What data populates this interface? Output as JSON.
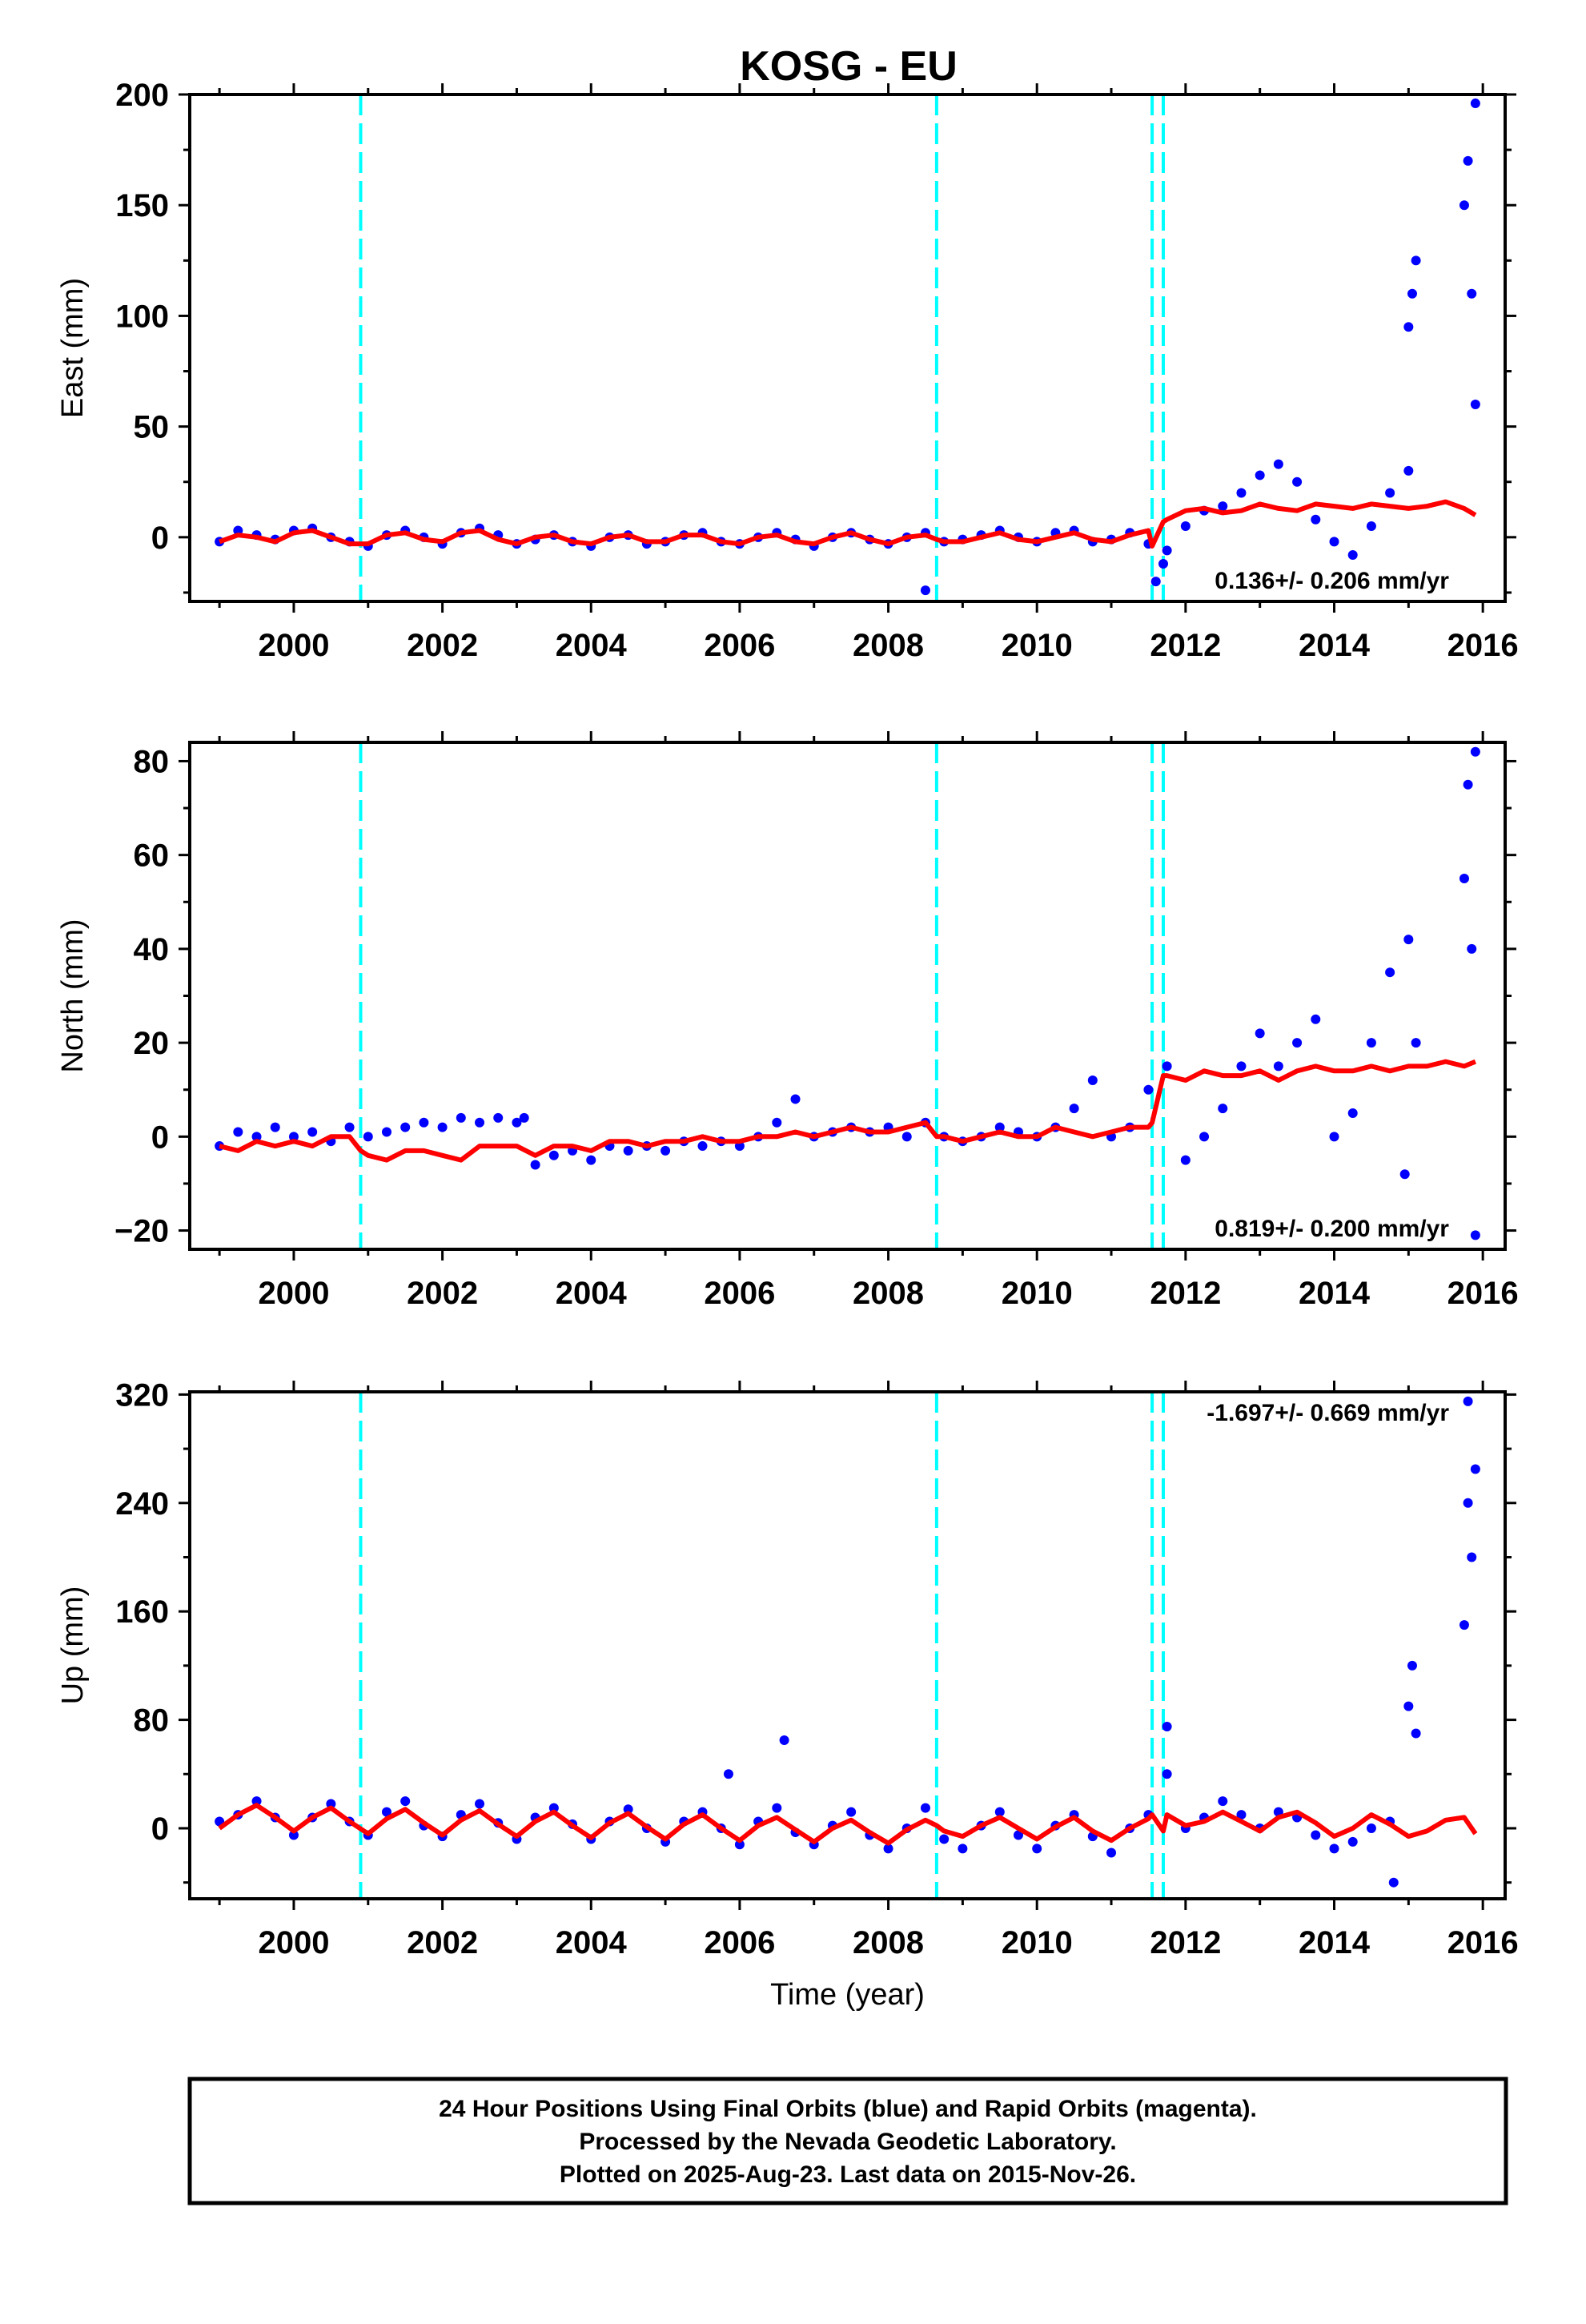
{
  "title": "KOSG - EU",
  "colors": {
    "final_orbits": "#0000ff",
    "model": "#ff0000",
    "steps": "#00ffff",
    "frame": "#000000"
  },
  "caption": [
    "24 Hour Positions Using Final Orbits (blue) and Rapid Orbits (magenta).",
    "Processed by the Nevada Geodetic Laboratory.",
    "Plotted on 2025-Aug-23. Last data on 2015-Nov-26."
  ],
  "chart_data": [
    {
      "type": "scatter",
      "ylabel": "East (mm)",
      "xlabel": "",
      "xlim": [
        1998.6,
        2016.3
      ],
      "ylim": [
        -29,
        200
      ],
      "yticks": [
        0,
        50,
        100,
        150,
        200
      ],
      "xticks": [
        2000,
        2002,
        2004,
        2006,
        2008,
        2010,
        2012,
        2014,
        2016
      ],
      "rate": "0.136+/- 0.206 mm/yr",
      "rate_position": "bottom-right",
      "grid": false,
      "step_epochs": [
        2000.9,
        2008.65,
        2011.55,
        2011.7
      ],
      "series": [
        {
          "role": "daily positions",
          "x": [
            1999.0,
            1999.25,
            1999.5,
            1999.75,
            2000.0,
            2000.25,
            2000.5,
            2000.75,
            2001.0,
            2001.25,
            2001.5,
            2001.75,
            2002.0,
            2002.25,
            2002.5,
            2002.75,
            2003.0,
            2003.25,
            2003.5,
            2003.75,
            2004.0,
            2004.25,
            2004.5,
            2004.75,
            2005.0,
            2005.25,
            2005.5,
            2005.75,
            2006.0,
            2006.25,
            2006.5,
            2006.75,
            2007.0,
            2007.25,
            2007.5,
            2007.75,
            2008.0,
            2008.25,
            2008.5,
            2008.75,
            2009.0,
            2009.25,
            2009.5,
            2009.75,
            2010.0,
            2010.25,
            2010.5,
            2010.75,
            2011.0,
            2011.25,
            2011.5,
            2011.75,
            2012.0,
            2012.25,
            2012.5,
            2012.75,
            2013.0,
            2013.25,
            2013.5,
            2013.75,
            2014.0,
            2014.25,
            2014.5,
            2014.75,
            2015.0,
            2015.05,
            2015.1,
            2015.75,
            2015.8,
            2015.85,
            2015.9,
            2008.5,
            2011.6,
            2011.7,
            2015.9,
            2015.0
          ],
          "y": [
            -2,
            3,
            1,
            -1,
            3,
            4,
            0,
            -2,
            -4,
            1,
            3,
            0,
            -3,
            2,
            4,
            1,
            -3,
            -1,
            1,
            -2,
            -4,
            0,
            1,
            -3,
            -2,
            1,
            2,
            -2,
            -3,
            0,
            2,
            -1,
            -4,
            0,
            2,
            -1,
            -3,
            0,
            2,
            -2,
            -1,
            1,
            3,
            0,
            -2,
            2,
            3,
            -2,
            -1,
            2,
            -3,
            -6,
            5,
            12,
            14,
            20,
            28,
            33,
            25,
            8,
            -2,
            -8,
            5,
            20,
            95,
            110,
            125,
            150,
            170,
            110,
            60,
            -24,
            -20,
            -12,
            196,
            30
          ]
        },
        {
          "role": "model fit",
          "x": [
            1999.0,
            1999.25,
            1999.5,
            1999.75,
            2000.0,
            2000.25,
            2000.5,
            2000.75,
            2000.9,
            2001.0,
            2001.25,
            2001.5,
            2001.75,
            2002.0,
            2002.25,
            2002.5,
            2002.75,
            2003.0,
            2003.25,
            2003.5,
            2003.75,
            2004.0,
            2004.25,
            2004.5,
            2004.75,
            2005.0,
            2005.25,
            2005.5,
            2005.75,
            2006.0,
            2006.25,
            2006.5,
            2006.75,
            2007.0,
            2007.25,
            2007.5,
            2007.75,
            2008.0,
            2008.25,
            2008.5,
            2008.65,
            2008.75,
            2009.0,
            2009.25,
            2009.5,
            2009.75,
            2010.0,
            2010.25,
            2010.5,
            2010.75,
            2011.0,
            2011.25,
            2011.5,
            2011.55,
            2011.7,
            2011.75,
            2012.0,
            2012.25,
            2012.5,
            2012.75,
            2013.0,
            2013.25,
            2013.5,
            2013.75,
            2014.0,
            2014.25,
            2014.5,
            2014.75,
            2015.0,
            2015.25,
            2015.5,
            2015.75,
            2015.9
          ],
          "y": [
            -2,
            1,
            0,
            -2,
            2,
            3,
            0,
            -3,
            -3,
            -3,
            1,
            2,
            -1,
            -2,
            2,
            3,
            -1,
            -3,
            0,
            1,
            -2,
            -3,
            0,
            1,
            -2,
            -2,
            1,
            1,
            -2,
            -3,
            0,
            1,
            -2,
            -3,
            0,
            2,
            -1,
            -3,
            0,
            1,
            -1,
            -2,
            -2,
            0,
            2,
            -1,
            -2,
            0,
            2,
            -1,
            -2,
            1,
            3,
            -4,
            7,
            8,
            12,
            13,
            11,
            12,
            15,
            13,
            12,
            15,
            14,
            13,
            15,
            14,
            13,
            14,
            16,
            13,
            10
          ]
        }
      ]
    },
    {
      "type": "scatter",
      "ylabel": "North (mm)",
      "xlabel": "",
      "xlim": [
        1998.6,
        2016.3
      ],
      "ylim": [
        -24,
        84
      ],
      "yticks": [
        -20,
        0,
        20,
        40,
        60,
        80
      ],
      "xticks": [
        2000,
        2002,
        2004,
        2006,
        2008,
        2010,
        2012,
        2014,
        2016
      ],
      "rate": "0.819+/- 0.200 mm/yr",
      "rate_position": "bottom-right",
      "grid": false,
      "step_epochs": [
        2000.9,
        2008.65,
        2011.55,
        2011.7
      ],
      "series": [
        {
          "role": "daily positions",
          "x": [
            1999.0,
            1999.25,
            1999.5,
            1999.75,
            2000.0,
            2000.25,
            2000.5,
            2000.75,
            2001.0,
            2001.25,
            2001.5,
            2001.75,
            2002.0,
            2002.25,
            2002.5,
            2002.75,
            2003.0,
            2003.1,
            2003.25,
            2003.5,
            2003.75,
            2004.0,
            2004.25,
            2004.5,
            2004.75,
            2005.0,
            2005.25,
            2005.5,
            2005.75,
            2006.0,
            2006.25,
            2006.5,
            2006.75,
            2007.0,
            2007.25,
            2007.5,
            2007.75,
            2008.0,
            2008.25,
            2008.5,
            2008.75,
            2009.0,
            2009.25,
            2009.5,
            2009.75,
            2010.0,
            2010.25,
            2010.5,
            2010.75,
            2011.0,
            2011.25,
            2011.5,
            2011.75,
            2012.0,
            2012.25,
            2012.5,
            2012.75,
            2013.0,
            2013.25,
            2013.5,
            2013.75,
            2014.0,
            2014.25,
            2014.5,
            2014.75,
            2015.0,
            2015.1,
            2015.75,
            2015.8,
            2015.85,
            2015.9,
            2015.9,
            2014.95
          ],
          "y": [
            -2,
            1,
            0,
            2,
            0,
            1,
            -1,
            2,
            0,
            1,
            2,
            3,
            2,
            4,
            3,
            4,
            3,
            4,
            -6,
            -4,
            -3,
            -5,
            -2,
            -3,
            -2,
            -3,
            -1,
            -2,
            -1,
            -2,
            0,
            3,
            8,
            0,
            1,
            2,
            1,
            2,
            0,
            3,
            0,
            -1,
            0,
            2,
            1,
            0,
            2,
            6,
            12,
            0,
            2,
            10,
            15,
            -5,
            0,
            6,
            15,
            22,
            15,
            20,
            25,
            0,
            5,
            20,
            35,
            42,
            20,
            55,
            75,
            40,
            82,
            -21,
            -8
          ]
        },
        {
          "role": "model fit",
          "x": [
            1999.0,
            1999.25,
            1999.5,
            1999.75,
            2000.0,
            2000.25,
            2000.5,
            2000.75,
            2000.9,
            2001.0,
            2001.25,
            2001.5,
            2001.75,
            2002.0,
            2002.25,
            2002.5,
            2002.75,
            2003.0,
            2003.25,
            2003.5,
            2003.75,
            2004.0,
            2004.25,
            2004.5,
            2004.75,
            2005.0,
            2005.25,
            2005.5,
            2005.75,
            2006.0,
            2006.25,
            2006.5,
            2006.75,
            2007.0,
            2007.25,
            2007.5,
            2007.75,
            2008.0,
            2008.25,
            2008.5,
            2008.65,
            2008.75,
            2009.0,
            2009.25,
            2009.5,
            2009.75,
            2010.0,
            2010.25,
            2010.5,
            2010.75,
            2011.0,
            2011.25,
            2011.5,
            2011.55,
            2011.7,
            2011.75,
            2012.0,
            2012.25,
            2012.5,
            2012.75,
            2013.0,
            2013.25,
            2013.5,
            2013.75,
            2014.0,
            2014.25,
            2014.5,
            2014.75,
            2015.0,
            2015.25,
            2015.5,
            2015.75,
            2015.9
          ],
          "y": [
            -2,
            -3,
            -1,
            -2,
            -1,
            -2,
            0,
            0,
            -3,
            -4,
            -5,
            -3,
            -3,
            -4,
            -5,
            -2,
            -2,
            -2,
            -4,
            -2,
            -2,
            -3,
            -1,
            -1,
            -2,
            -1,
            -1,
            0,
            -1,
            -1,
            0,
            0,
            1,
            0,
            1,
            2,
            1,
            1,
            2,
            3,
            0,
            0,
            -1,
            0,
            1,
            0,
            0,
            2,
            1,
            0,
            1,
            2,
            2,
            3,
            13,
            13,
            12,
            14,
            13,
            13,
            14,
            12,
            14,
            15,
            14,
            14,
            15,
            14,
            15,
            15,
            16,
            15,
            16
          ]
        }
      ]
    },
    {
      "type": "scatter",
      "ylabel": "Up (mm)",
      "xlabel": "Time (year)",
      "xlim": [
        1998.6,
        2016.3
      ],
      "ylim": [
        -52,
        322
      ],
      "yticks": [
        0,
        80,
        160,
        240,
        320
      ],
      "xticks": [
        2000,
        2002,
        2004,
        2006,
        2008,
        2010,
        2012,
        2014,
        2016
      ],
      "rate": "-1.697+/- 0.669 mm/yr",
      "rate_position": "top-right",
      "grid": false,
      "step_epochs": [
        2000.9,
        2008.65,
        2011.55,
        2011.7
      ],
      "series": [
        {
          "role": "daily positions",
          "x": [
            1999.0,
            1999.25,
            1999.5,
            1999.75,
            2000.0,
            2000.25,
            2000.5,
            2000.75,
            2001.0,
            2001.25,
            2001.5,
            2001.75,
            2002.0,
            2002.25,
            2002.5,
            2002.75,
            2003.0,
            2003.25,
            2003.5,
            2003.75,
            2004.0,
            2004.25,
            2004.5,
            2004.75,
            2005.0,
            2005.25,
            2005.5,
            2005.75,
            2006.0,
            2006.25,
            2006.5,
            2006.75,
            2007.0,
            2007.25,
            2007.5,
            2007.75,
            2008.0,
            2008.25,
            2008.5,
            2008.75,
            2009.0,
            2009.25,
            2009.5,
            2009.75,
            2010.0,
            2010.25,
            2010.5,
            2010.75,
            2011.0,
            2011.25,
            2011.5,
            2011.75,
            2012.0,
            2012.25,
            2012.5,
            2012.75,
            2013.0,
            2013.25,
            2013.5,
            2013.75,
            2014.0,
            2014.25,
            2014.5,
            2014.75,
            2015.0,
            2015.05,
            2015.1,
            2015.75,
            2015.8,
            2015.85,
            2015.9,
            2005.85,
            2006.6,
            2011.75,
            2015.8,
            2014.8
          ],
          "y": [
            5,
            10,
            20,
            8,
            -5,
            8,
            18,
            5,
            -5,
            12,
            20,
            2,
            -6,
            10,
            18,
            4,
            -8,
            8,
            15,
            3,
            -8,
            5,
            14,
            0,
            -10,
            5,
            12,
            0,
            -12,
            5,
            15,
            -3,
            -12,
            2,
            12,
            -5,
            -15,
            0,
            15,
            -8,
            -15,
            2,
            12,
            -5,
            -15,
            2,
            10,
            -6,
            -18,
            0,
            10,
            40,
            0,
            8,
            20,
            10,
            0,
            12,
            8,
            -5,
            -15,
            -10,
            0,
            5,
            90,
            120,
            70,
            150,
            240,
            200,
            265,
            40,
            65,
            75,
            315,
            -40
          ]
        },
        {
          "role": "model fit",
          "x": [
            1999.0,
            1999.25,
            1999.5,
            1999.75,
            2000.0,
            2000.25,
            2000.5,
            2000.75,
            2001.0,
            2001.25,
            2001.5,
            2001.75,
            2002.0,
            2002.25,
            2002.5,
            2002.75,
            2003.0,
            2003.25,
            2003.5,
            2003.75,
            2004.0,
            2004.25,
            2004.5,
            2004.75,
            2005.0,
            2005.25,
            2005.5,
            2005.75,
            2006.0,
            2006.25,
            2006.5,
            2006.75,
            2007.0,
            2007.25,
            2007.5,
            2007.75,
            2008.0,
            2008.25,
            2008.5,
            2008.65,
            2008.75,
            2009.0,
            2009.25,
            2009.5,
            2009.75,
            2010.0,
            2010.25,
            2010.5,
            2010.75,
            2011.0,
            2011.25,
            2011.5,
            2011.55,
            2011.7,
            2011.75,
            2012.0,
            2012.25,
            2012.5,
            2012.75,
            2013.0,
            2013.25,
            2013.5,
            2013.75,
            2014.0,
            2014.25,
            2014.5,
            2014.75,
            2015.0,
            2015.25,
            2015.5,
            2015.75,
            2015.9
          ],
          "y": [
            0,
            10,
            17,
            8,
            -2,
            8,
            15,
            5,
            -4,
            7,
            14,
            4,
            -5,
            6,
            13,
            3,
            -6,
            5,
            12,
            2,
            -7,
            4,
            11,
            1,
            -8,
            3,
            10,
            0,
            -9,
            2,
            8,
            -1,
            -10,
            0,
            6,
            -3,
            -11,
            -1,
            6,
            2,
            -2,
            -6,
            2,
            8,
            0,
            -8,
            1,
            8,
            -2,
            -9,
            0,
            7,
            10,
            -2,
            10,
            2,
            5,
            12,
            5,
            -2,
            8,
            12,
            4,
            -6,
            0,
            10,
            3,
            -6,
            -2,
            6,
            8,
            -4
          ]
        }
      ]
    }
  ]
}
